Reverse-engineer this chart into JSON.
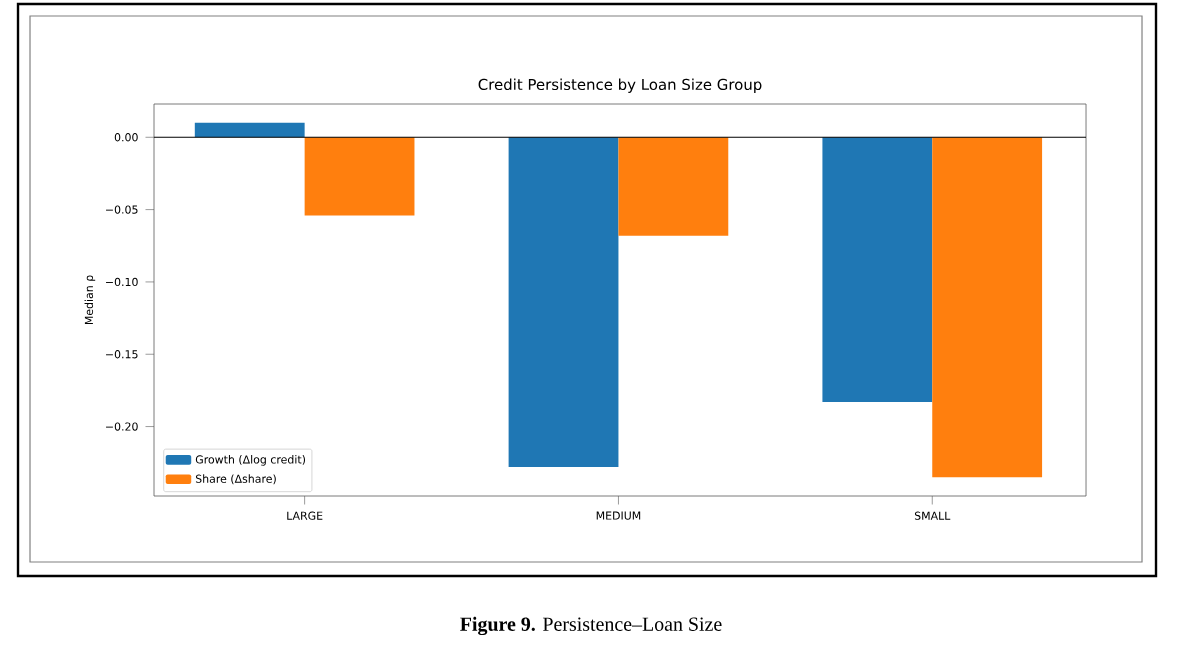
{
  "chart_data": {
    "type": "bar",
    "title": "Credit Persistence by Loan Size Group",
    "ylabel": "Median ρ",
    "categories": [
      "LARGE",
      "MEDIUM",
      "SMALL"
    ],
    "series": [
      {
        "name": "Growth (Δlog credit)",
        "color": "#1f77b4",
        "values": [
          0.01,
          -0.228,
          -0.183
        ]
      },
      {
        "name": "Share (Δshare)",
        "color": "#ff7f0e",
        "values": [
          -0.054,
          -0.068,
          -0.235
        ]
      }
    ],
    "ylim": [
      -0.248,
      0.023
    ],
    "yticks": [
      {
        "value": 0,
        "label": "0.00"
      },
      {
        "value": -0.05,
        "label": "−0.05"
      },
      {
        "value": -0.1,
        "label": "−0.10"
      },
      {
        "value": -0.15,
        "label": "−0.15"
      },
      {
        "value": -0.2,
        "label": "−0.20"
      }
    ],
    "ref_lines": [
      {
        "axis": "y",
        "value": 0,
        "color": "#000000"
      }
    ],
    "legend": "bottom left",
    "grid": false,
    "annotations": [
      "**Figure 9.** Persistence–Loan Size"
    ]
  }
}
